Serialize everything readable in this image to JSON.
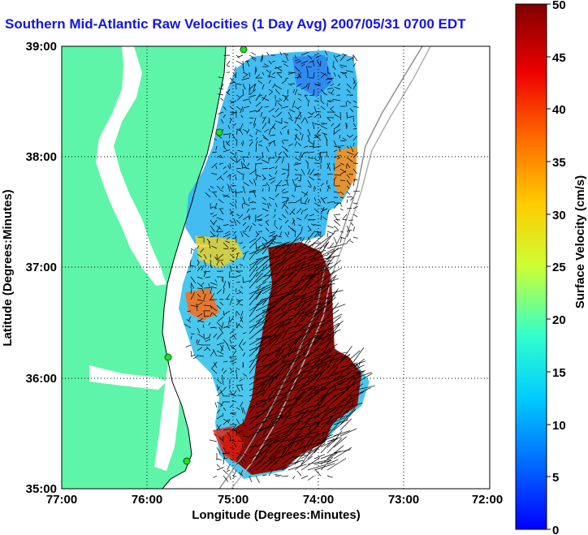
{
  "title": "Southern Mid-Atlantic Raw Velocities (1 Day Avg) 2007/05/31 0700 EDT",
  "axes": {
    "xlabel": "Longitude (Degrees:Minutes)",
    "ylabel": "Latitude (Degrees:Minutes)",
    "xticks": [
      "77:00",
      "76:00",
      "75:00",
      "74:00",
      "73:00",
      "72:00"
    ],
    "yticks": [
      "39:00",
      "38:00",
      "37:00",
      "36:00",
      "35:00"
    ]
  },
  "colorbar": {
    "label": "Surface Velocity (cm/s)",
    "ticks": [
      "50",
      "45",
      "40",
      "35",
      "30",
      "25",
      "20",
      "15",
      "10",
      "5",
      "0"
    ],
    "range": [
      0,
      50
    ],
    "colormap": "jet"
  },
  "colors": {
    "land": "#5ef5a8",
    "title": "#1414e6",
    "grid": "#000000"
  }
}
